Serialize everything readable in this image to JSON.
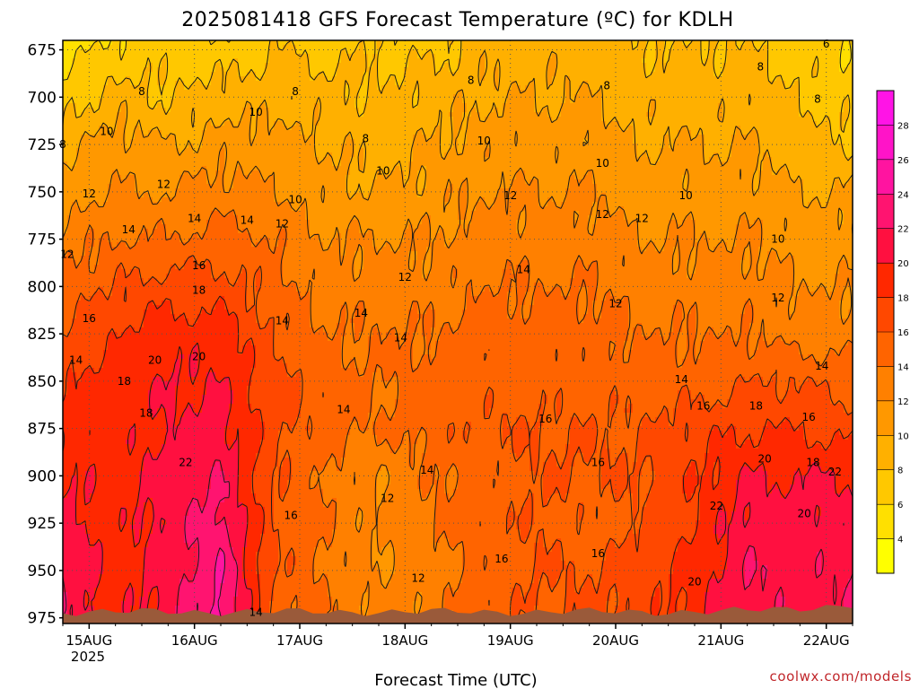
{
  "chart_data": {
    "type": "heatmap",
    "title": "2025081418 GFS Forecast Temperature (ºC) for KDLH",
    "xlabel": "Forecast Time (UTC)",
    "ylabel": "",
    "credit": "coolwx.com/models",
    "x_ticks": [
      "15AUG",
      "16AUG",
      "17AUG",
      "18AUG",
      "19AUG",
      "20AUG",
      "21AUG",
      "22AUG"
    ],
    "x_year_label": "2025",
    "x_start": "2025-08-14 18 UTC",
    "x_end": "2025-08-22 06 UTC",
    "y_ticks": [
      675,
      700,
      725,
      750,
      775,
      800,
      825,
      850,
      875,
      900,
      925,
      950,
      975
    ],
    "ylim": [
      670,
      978
    ],
    "y_unit": "hPa",
    "colorbar": {
      "ticks": [
        4,
        6,
        8,
        10,
        12,
        14,
        16,
        18,
        20,
        22,
        24,
        26,
        28
      ],
      "colors": [
        "#ffff00",
        "#ffe000",
        "#ffc800",
        "#ffb000",
        "#ff9800",
        "#ff8000",
        "#ff6400",
        "#ff4800",
        "#ff2800",
        "#ff1040",
        "#ff1470",
        "#ff14a0",
        "#ff14c8",
        "#ff14e6"
      ]
    },
    "ground_color": "#9a5a3a",
    "columns_x": [
      "2025-08-14 18 UTC",
      "2025-08-15 06 UTC",
      "2025-08-15 18 UTC",
      "2025-08-16 06 UTC",
      "2025-08-16 18 UTC",
      "2025-08-17 06 UTC",
      "2025-08-17 18 UTC",
      "2025-08-18 06 UTC",
      "2025-08-18 18 UTC",
      "2025-08-19 06 UTC",
      "2025-08-19 18 UTC",
      "2025-08-20 06 UTC",
      "2025-08-20 18 UTC",
      "2025-08-21 06 UTC",
      "2025-08-21 18 UTC",
      "2025-08-22 06 UTC"
    ],
    "rows_y": [
      670,
      700,
      725,
      750,
      775,
      800,
      825,
      850,
      875,
      900,
      925,
      950,
      978
    ],
    "temperature_grid": [
      [
        5,
        6,
        7,
        6,
        8,
        7,
        8,
        7,
        9,
        9,
        9,
        8,
        8,
        8,
        7,
        6
      ],
      [
        7,
        9,
        8,
        9,
        9,
        9,
        8,
        9,
        10,
        10,
        10,
        9,
        9,
        9,
        8,
        7
      ],
      [
        9,
        11,
        10,
        11,
        11,
        10,
        9,
        10,
        11,
        11,
        11,
        10,
        10,
        10,
        9,
        8
      ],
      [
        11,
        12,
        12,
        13,
        12,
        11,
        10,
        11,
        12,
        12,
        12,
        11,
        11,
        11,
        10,
        10
      ],
      [
        13,
        14,
        14,
        15,
        14,
        12,
        12,
        12,
        13,
        13,
        13,
        12,
        12,
        12,
        11,
        11
      ],
      [
        15,
        16,
        17,
        17,
        15,
        13,
        13,
        13,
        14,
        14,
        14,
        13,
        13,
        13,
        12,
        12
      ],
      [
        16,
        18,
        19,
        19,
        16,
        14,
        14,
        14,
        15,
        15,
        15,
        14,
        14,
        14,
        13,
        13
      ],
      [
        18,
        19,
        20,
        20,
        17,
        15,
        14,
        15,
        15,
        15,
        15,
        15,
        15,
        16,
        16,
        15
      ],
      [
        19,
        19,
        20,
        21,
        17,
        15,
        14,
        15,
        16,
        16,
        16,
        16,
        17,
        18,
        18,
        17
      ],
      [
        20,
        19,
        21,
        22,
        16,
        14,
        12,
        14,
        15,
        16,
        16,
        16,
        18,
        20,
        20,
        20
      ],
      [
        21,
        19,
        21,
        23,
        16,
        14,
        12,
        14,
        15,
        16,
        15,
        16,
        18,
        21,
        21,
        21
      ],
      [
        22,
        19,
        21,
        24,
        16,
        14,
        12,
        13,
        15,
        16,
        16,
        17,
        19,
        22,
        21,
        22
      ],
      [
        22,
        19,
        21,
        25,
        15,
        14,
        12,
        13,
        15,
        16,
        16,
        17,
        19,
        22,
        21,
        22
      ]
    ],
    "contour_labels": [
      {
        "text": "6",
        "x": "2025-08-22 00 UTC",
        "y": 672
      },
      {
        "text": "8",
        "x": "2025-08-15 12 UTC",
        "y": 697
      },
      {
        "text": "8",
        "x": "2025-08-16 23 UTC",
        "y": 697
      },
      {
        "text": "8",
        "x": "2025-08-17 15 UTC",
        "y": 722
      },
      {
        "text": "8",
        "x": "2025-08-18 15 UTC",
        "y": 691
      },
      {
        "text": "8",
        "x": "2025-08-19 22 UTC",
        "y": 694
      },
      {
        "text": "8",
        "x": "2025-08-21 09 UTC",
        "y": 684
      },
      {
        "text": "8",
        "x": "2025-08-21 22 UTC",
        "y": 701
      },
      {
        "text": "8",
        "x": "2025-08-14 18 UTC",
        "y": 725
      },
      {
        "text": "10",
        "x": "2025-08-15 04 UTC",
        "y": 718
      },
      {
        "text": "10",
        "x": "2025-08-16 14 UTC",
        "y": 708
      },
      {
        "text": "10",
        "x": "2025-08-17 19 UTC",
        "y": 739
      },
      {
        "text": "10",
        "x": "2025-08-18 18 UTC",
        "y": 723
      },
      {
        "text": "10",
        "x": "2025-08-19 21 UTC",
        "y": 735
      },
      {
        "text": "10",
        "x": "2025-08-20 16 UTC",
        "y": 752
      },
      {
        "text": "10",
        "x": "2025-08-16 23 UTC",
        "y": 754
      },
      {
        "text": "10",
        "x": "2025-08-21 13 UTC",
        "y": 775
      },
      {
        "text": "12",
        "x": "2025-08-15 00 UTC",
        "y": 751
      },
      {
        "text": "12",
        "x": "2025-08-15 17 UTC",
        "y": 746
      },
      {
        "text": "12",
        "x": "2025-08-16 20 UTC",
        "y": 767
      },
      {
        "text": "12",
        "x": "2025-08-18 00 UTC",
        "y": 795
      },
      {
        "text": "12",
        "x": "2025-08-19 00 UTC",
        "y": 752
      },
      {
        "text": "12",
        "x": "2025-08-19 21 UTC",
        "y": 762
      },
      {
        "text": "12",
        "x": "2025-08-20 06 UTC",
        "y": 764
      },
      {
        "text": "12",
        "x": "2025-08-20 00 UTC",
        "y": 809
      },
      {
        "text": "12",
        "x": "2025-08-21 13 UTC",
        "y": 806
      },
      {
        "text": "12",
        "x": "2025-08-14 19 UTC",
        "y": 783
      },
      {
        "text": "12",
        "x": "2025-08-17 20 UTC",
        "y": 912
      },
      {
        "text": "12",
        "x": "2025-08-18 03 UTC",
        "y": 954
      },
      {
        "text": "14",
        "x": "2025-08-15 09 UTC",
        "y": 770
      },
      {
        "text": "14",
        "x": "2025-08-16 00 UTC",
        "y": 764
      },
      {
        "text": "14",
        "x": "2025-08-16 12 UTC",
        "y": 765
      },
      {
        "text": "14",
        "x": "2025-08-16 20 UTC",
        "y": 818
      },
      {
        "text": "14",
        "x": "2025-08-17 14 UTC",
        "y": 814
      },
      {
        "text": "14",
        "x": "2025-08-17 23 UTC",
        "y": 827
      },
      {
        "text": "14",
        "x": "2025-08-19 03 UTC",
        "y": 791
      },
      {
        "text": "14",
        "x": "2025-08-20 15 UTC",
        "y": 849
      },
      {
        "text": "14",
        "x": "2025-08-21 23 UTC",
        "y": 842
      },
      {
        "text": "14",
        "x": "2025-08-14 21 UTC",
        "y": 839
      },
      {
        "text": "14",
        "x": "2025-08-17 10 UTC",
        "y": 865
      },
      {
        "text": "14",
        "x": "2025-08-18 05 UTC",
        "y": 897
      },
      {
        "text": "14",
        "x": "2025-08-16 14 UTC",
        "y": 972
      },
      {
        "text": "16",
        "x": "2025-08-15 00 UTC",
        "y": 817
      },
      {
        "text": "16",
        "x": "2025-08-16 01 UTC",
        "y": 789
      },
      {
        "text": "16",
        "x": "2025-08-16 22 UTC",
        "y": 921
      },
      {
        "text": "16",
        "x": "2025-08-19 08 UTC",
        "y": 870
      },
      {
        "text": "16",
        "x": "2025-08-19 20 UTC",
        "y": 893
      },
      {
        "text": "16",
        "x": "2025-08-19 20 UTC",
        "y": 941
      },
      {
        "text": "16",
        "x": "2025-08-18 22 UTC",
        "y": 944
      },
      {
        "text": "16",
        "x": "2025-08-20 20 UTC",
        "y": 863
      },
      {
        "text": "16",
        "x": "2025-08-21 20 UTC",
        "y": 869
      },
      {
        "text": "18",
        "x": "2025-08-15 08 UTC",
        "y": 850
      },
      {
        "text": "18",
        "x": "2025-08-15 13 UTC",
        "y": 867
      },
      {
        "text": "18",
        "x": "2025-08-16 01 UTC",
        "y": 802
      },
      {
        "text": "18",
        "x": "2025-08-21 08 UTC",
        "y": 863
      },
      {
        "text": "18",
        "x": "2025-08-21 21 UTC",
        "y": 893
      },
      {
        "text": "20",
        "x": "2025-08-15 15 UTC",
        "y": 839
      },
      {
        "text": "20",
        "x": "2025-08-16 01 UTC",
        "y": 837
      },
      {
        "text": "20",
        "x": "2025-08-21 10 UTC",
        "y": 891
      },
      {
        "text": "20",
        "x": "2025-08-21 19 UTC",
        "y": 920
      },
      {
        "text": "20",
        "x": "2025-08-20 18 UTC",
        "y": 956
      },
      {
        "text": "22",
        "x": "2025-08-15 22 UTC",
        "y": 893
      },
      {
        "text": "22",
        "x": "2025-08-20 23 UTC",
        "y": 916
      },
      {
        "text": "22",
        "x": "2025-08-22 02 UTC",
        "y": 898
      }
    ]
  }
}
